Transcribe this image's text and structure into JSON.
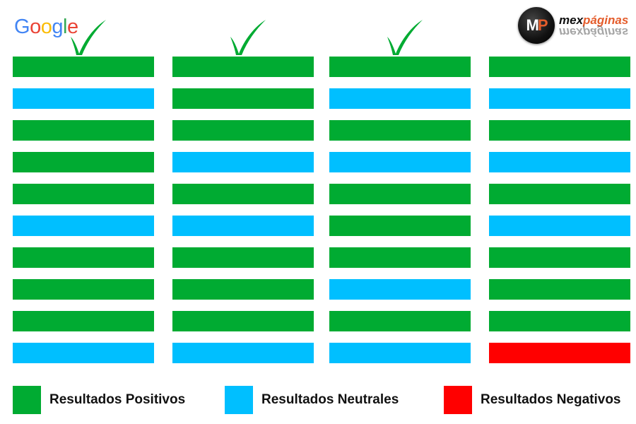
{
  "google_logo": {
    "letters": [
      {
        "char": "G",
        "color": "#4285F4"
      },
      {
        "char": "o",
        "color": "#EA4335"
      },
      {
        "char": "o",
        "color": "#FBBC05"
      },
      {
        "char": "g",
        "color": "#4285F4"
      },
      {
        "char": "l",
        "color": "#34A853"
      },
      {
        "char": "e",
        "color": "#EA4335"
      }
    ]
  },
  "brand_logo": {
    "badge_m": "M",
    "badge_p": "P",
    "name_part1": "mex",
    "name_part2": "páginas"
  },
  "colors": {
    "positive": "#00ab32",
    "neutral": "#00bfff",
    "negative": "#ff0000",
    "check": "#00ab32"
  },
  "columns": [
    {
      "checked": true,
      "results": [
        "positive",
        "neutral",
        "positive",
        "positive",
        "positive",
        "neutral",
        "positive",
        "positive",
        "positive",
        "neutral"
      ]
    },
    {
      "checked": true,
      "results": [
        "positive",
        "positive",
        "positive",
        "neutral",
        "positive",
        "neutral",
        "positive",
        "positive",
        "positive",
        "neutral"
      ]
    },
    {
      "checked": true,
      "results": [
        "positive",
        "neutral",
        "positive",
        "neutral",
        "positive",
        "positive",
        "positive",
        "neutral",
        "positive",
        "neutral"
      ]
    },
    {
      "checked": false,
      "results": [
        "positive",
        "neutral",
        "positive",
        "neutral",
        "positive",
        "neutral",
        "positive",
        "positive",
        "positive",
        "negative"
      ]
    }
  ],
  "legend": {
    "positive": "Resultados Positivos",
    "neutral": "Resultados Neutrales",
    "negative": "Resultados Negativos"
  }
}
